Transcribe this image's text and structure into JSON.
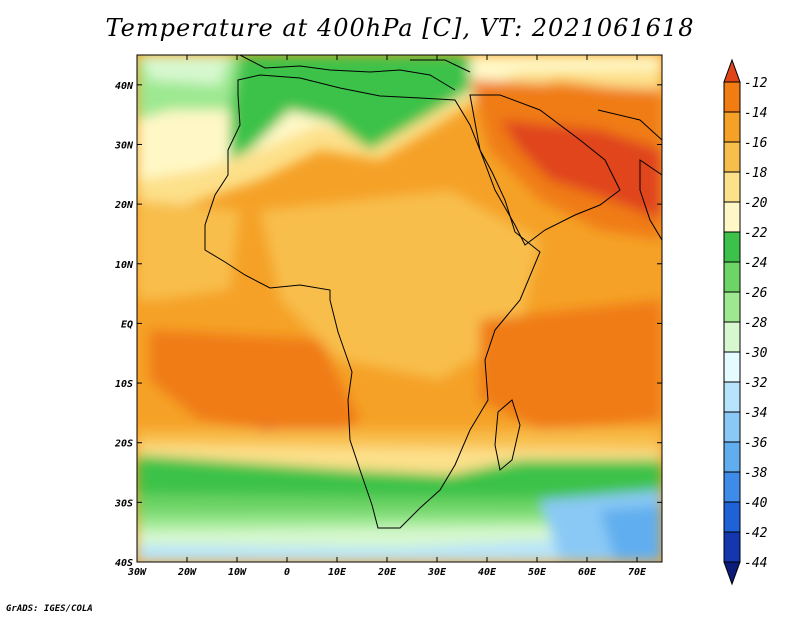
{
  "title": "Temperature at 400hPa [C], VT: 2021061618",
  "credit": "GrADS: IGES/COLA",
  "map": {
    "lon_range": [
      -30,
      75
    ],
    "lat_range": [
      -40,
      45
    ],
    "lon_ticks": [
      {
        "value": -30,
        "label": "30W"
      },
      {
        "value": -20,
        "label": "20W"
      },
      {
        "value": -10,
        "label": "10W"
      },
      {
        "value": 0,
        "label": "0"
      },
      {
        "value": 10,
        "label": "10E"
      },
      {
        "value": 20,
        "label": "20E"
      },
      {
        "value": 30,
        "label": "30E"
      },
      {
        "value": 40,
        "label": "40E"
      },
      {
        "value": 50,
        "label": "50E"
      },
      {
        "value": 60,
        "label": "60E"
      },
      {
        "value": 70,
        "label": "70E"
      }
    ],
    "lat_ticks": [
      {
        "value": 40,
        "label": "40N"
      },
      {
        "value": 30,
        "label": "30N"
      },
      {
        "value": 20,
        "label": "20N"
      },
      {
        "value": 10,
        "label": "10N"
      },
      {
        "value": 0,
        "label": "EQ"
      },
      {
        "value": -10,
        "label": "10S"
      },
      {
        "value": -20,
        "label": "20S"
      },
      {
        "value": -30,
        "label": "30S"
      },
      {
        "value": -40,
        "label": "40S"
      }
    ]
  },
  "colorbar": {
    "labels": [
      "-12",
      "-14",
      "-16",
      "-18",
      "-20",
      "-22",
      "-24",
      "-26",
      "-28",
      "-30",
      "-32",
      "-34",
      "-36",
      "-38",
      "-40",
      "-42",
      "-44"
    ],
    "colors": [
      "#e0451a",
      "#f07c12",
      "#f5a127",
      "#f8be4c",
      "#fde08a",
      "#fff8c6",
      "#3cc24a",
      "#6dd466",
      "#9de891",
      "#d7f8cf",
      "#e6fbff",
      "#b8e4fb",
      "#8ac9f5",
      "#61aeef",
      "#3e8bea",
      "#1f61d6",
      "#1437b0",
      "#0b1b7a"
    ]
  }
}
